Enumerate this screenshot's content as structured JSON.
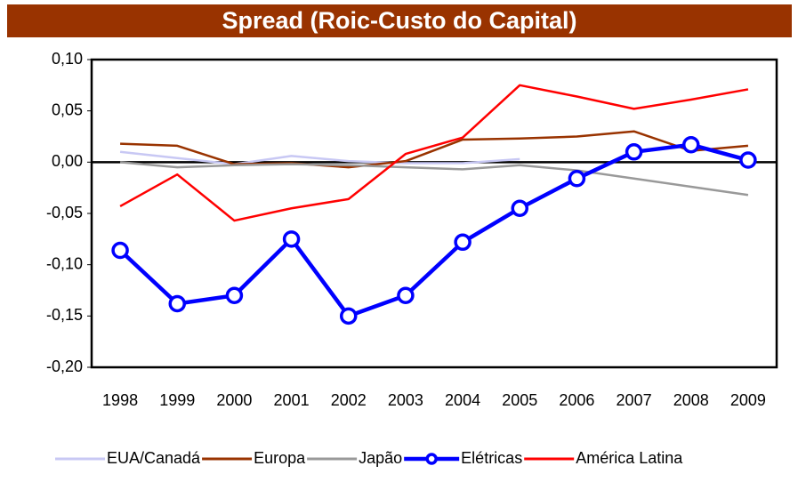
{
  "chart_data": {
    "type": "line",
    "title": "Spread (Roic-Custo do Capital)",
    "categories": [
      "1998",
      "1999",
      "2000",
      "2001",
      "2002",
      "2003",
      "2004",
      "2005",
      "2006",
      "2007",
      "2008",
      "2009"
    ],
    "ylim": [
      -0.2,
      0.1
    ],
    "yticks": [
      {
        "value": -0.2,
        "label": "-0,20"
      },
      {
        "value": -0.15,
        "label": "-0,15"
      },
      {
        "value": -0.1,
        "label": "-0,10"
      },
      {
        "value": -0.05,
        "label": "-0,05"
      },
      {
        "value": 0,
        "label": "0,00"
      },
      {
        "value": 0.05,
        "label": "0,05"
      },
      {
        "value": 0.1,
        "label": "0,10"
      }
    ],
    "legend": "bottom",
    "series": [
      {
        "name": "EUA/Canadá",
        "color": "#c8c8f4",
        "values": [
          0.01,
          0.004,
          -0.002,
          0.006,
          0.001,
          -0.001,
          -0.001,
          0.003,
          null,
          null,
          null,
          null
        ]
      },
      {
        "name": "Europa",
        "color": "#993300",
        "values": [
          0.018,
          0.016,
          -0.002,
          -0.001,
          -0.005,
          0.001,
          0.022,
          0.023,
          0.025,
          0.03,
          0.011,
          0.016
        ]
      },
      {
        "name": "Japão",
        "color": "#999999",
        "values": [
          0.0,
          -0.005,
          -0.003,
          -0.002,
          -0.003,
          -0.005,
          -0.007,
          -0.003,
          -0.008,
          -0.016,
          -0.024,
          -0.032
        ]
      },
      {
        "name": "Elétricas",
        "color": "#0000ff",
        "marker": "circle",
        "values": [
          -0.086,
          -0.138,
          -0.13,
          -0.075,
          -0.15,
          -0.13,
          -0.078,
          -0.045,
          -0.016,
          0.01,
          0.017,
          0.002
        ]
      },
      {
        "name": "América Latina",
        "color": "#ff0000",
        "values": [
          -0.043,
          -0.012,
          -0.057,
          -0.045,
          -0.036,
          0.008,
          0.024,
          0.075,
          0.064,
          0.052,
          0.061,
          0.071
        ]
      }
    ]
  }
}
